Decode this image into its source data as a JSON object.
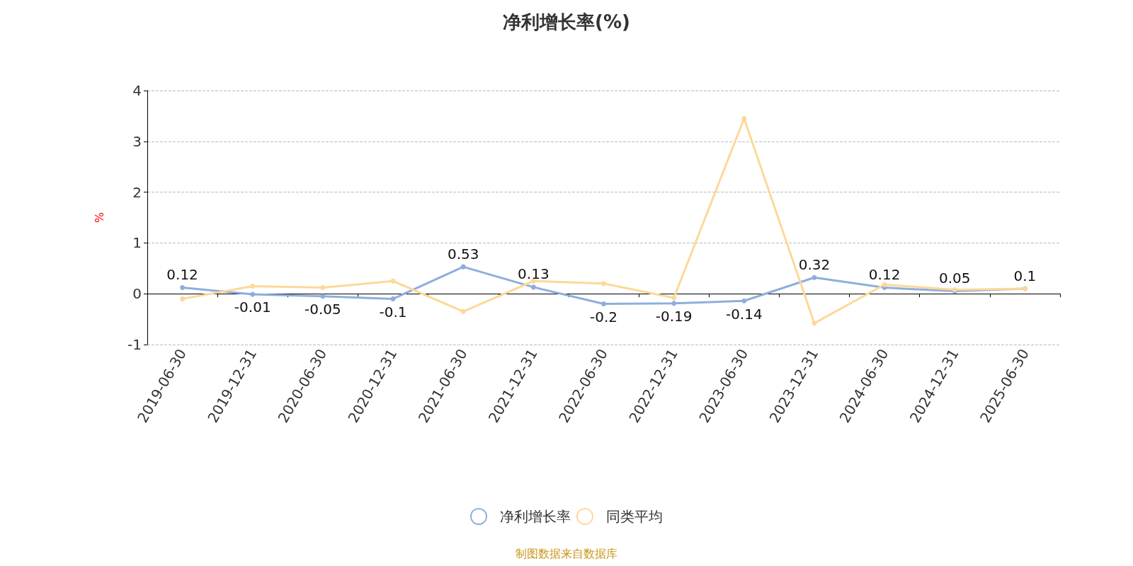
{
  "chart_data": {
    "type": "line",
    "title": "净利增长率(%)",
    "ylabel": "%",
    "categories": [
      "2019-06-30",
      "2019-12-31",
      "2020-06-30",
      "2020-12-31",
      "2021-06-30",
      "2021-12-31",
      "2022-06-30",
      "2022-12-31",
      "2023-06-30",
      "2023-12-31",
      "2024-06-30",
      "2024-12-31",
      "2025-06-30"
    ],
    "series": [
      {
        "name": "净利增长率",
        "color": "#8eaedc",
        "values": [
          0.12,
          -0.01,
          -0.05,
          -0.1,
          0.53,
          0.13,
          -0.2,
          -0.19,
          -0.14,
          0.32,
          0.12,
          0.05,
          0.1
        ],
        "value_labels": [
          "0.12",
          "-0.01",
          "-0.05",
          "-0.1",
          "0.53",
          "0.13",
          "-0.2",
          "-0.19",
          "-0.14",
          "0.32",
          "0.12",
          "0.05",
          "0.1"
        ]
      },
      {
        "name": "同类平均",
        "color": "#fdd89a",
        "values": [
          -0.1,
          0.15,
          0.12,
          0.25,
          -0.35,
          0.25,
          0.2,
          -0.08,
          3.45,
          -0.58,
          0.18,
          0.08,
          0.1
        ]
      }
    ],
    "ylim": [
      -1,
      4
    ],
    "yticks": [
      -1,
      0,
      1,
      2,
      3,
      4
    ],
    "grid": "y",
    "legend": "bottom",
    "marker": "circle",
    "line_style": "solid",
    "annotations": [
      "制图数据来自数据库"
    ]
  }
}
